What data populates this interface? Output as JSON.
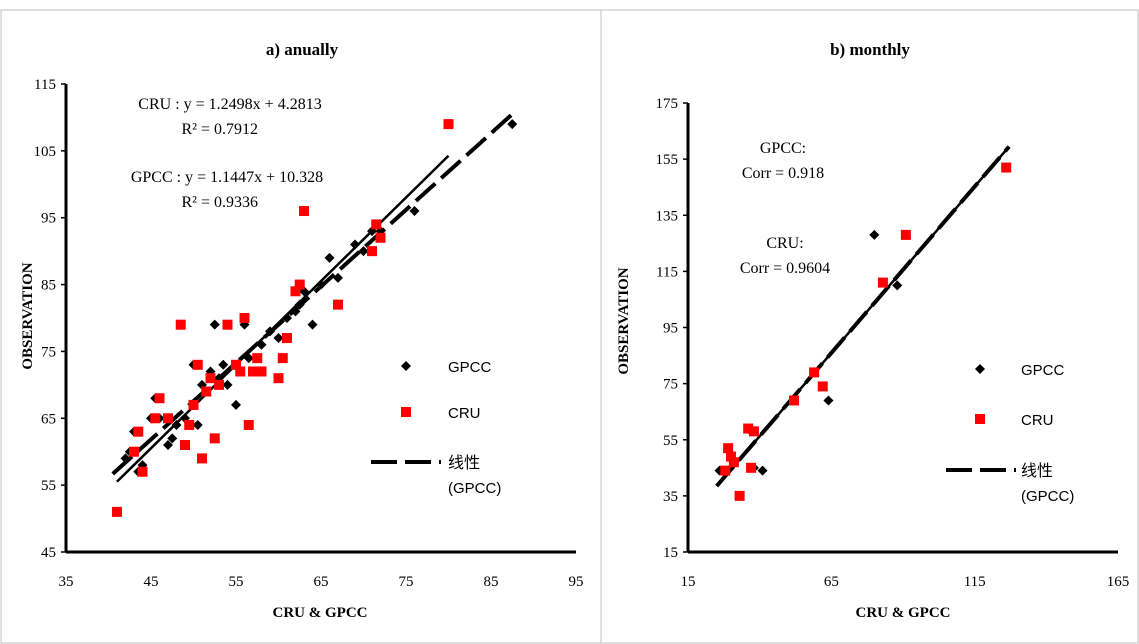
{
  "chart_data": [
    {
      "type": "scatter",
      "title": "a) anually",
      "xlabel": "CRU & GPCC",
      "ylabel": "OBSERVATION",
      "xlim": [
        35,
        95
      ],
      "ylim": [
        45,
        115
      ],
      "xticks": [
        "35",
        "45",
        "55",
        "65",
        "75",
        "85",
        "95"
      ],
      "yticks": [
        "45",
        "55",
        "65",
        "75",
        "85",
        "95",
        "105",
        "115"
      ],
      "annotations": [
        "CRU : y = 1.2498x + 4.2813",
        "R² = 0.7912",
        "GPCC : y = 1.1447x + 10.328",
        "R² = 0.9336"
      ],
      "legend": {
        "position": "right",
        "items": [
          "GPCC",
          "CRU",
          "线性",
          "(GPCC)"
        ]
      },
      "series": [
        {
          "name": "GPCC",
          "marker": "diamond",
          "color": "#000000",
          "x": [
            41,
            42,
            42.5,
            43,
            43.5,
            44,
            45,
            45.5,
            46,
            47,
            47.5,
            48,
            49,
            50,
            50.5,
            51,
            52,
            52.5,
            53,
            53.5,
            54,
            55,
            55.5,
            56,
            56.5,
            57,
            58,
            59,
            60,
            61,
            62,
            62.5,
            63,
            64,
            65,
            66,
            67,
            69,
            70,
            71,
            72,
            76,
            87.5
          ],
          "y": [
            51,
            59,
            60,
            63,
            57,
            58,
            65,
            68,
            65,
            61,
            62,
            64,
            65,
            73,
            64,
            70,
            72,
            79,
            71,
            73,
            70,
            67,
            72,
            79,
            74,
            72,
            76,
            78,
            77,
            80,
            81,
            82,
            84,
            79,
            85,
            89,
            86,
            91,
            90,
            93,
            93,
            96,
            109
          ]
        },
        {
          "name": "CRU",
          "marker": "square",
          "color": "#ff0000",
          "x": [
            41,
            43,
            43.5,
            44,
            45.5,
            46,
            47,
            48.5,
            49,
            49.5,
            50,
            50.5,
            51,
            51.5,
            52,
            52.5,
            53,
            54,
            55,
            55.5,
            56,
            56.5,
            57,
            57.5,
            58,
            60,
            60.5,
            61,
            62,
            62.5,
            63,
            67,
            71,
            71.5,
            72,
            80
          ],
          "y": [
            51,
            60,
            63,
            57,
            65,
            68,
            65,
            79,
            61,
            64,
            67,
            73,
            59,
            69,
            71,
            62,
            70,
            79,
            73,
            72,
            80,
            64,
            72,
            74,
            72,
            71,
            74,
            77,
            84,
            85,
            96,
            82,
            90,
            94,
            92,
            109
          ]
        }
      ],
      "trendlines": [
        {
          "name": "CRU",
          "style": "solid",
          "slope": 1.2498,
          "intercept": 4.2813,
          "x_range": [
            41,
            80
          ]
        },
        {
          "name": "线性 (GPCC)",
          "style": "dashed",
          "slope": 1.1447,
          "intercept": 10.328,
          "x_range": [
            40.5,
            87.5
          ]
        }
      ]
    },
    {
      "type": "scatter",
      "title": "b) monthly",
      "xlabel": "CRU & GPCC",
      "ylabel": "OBSERVATION",
      "xlim": [
        15,
        165
      ],
      "ylim": [
        15,
        175
      ],
      "xticks": [
        "15",
        "65",
        "115",
        "165"
      ],
      "yticks": [
        "15",
        "35",
        "55",
        "75",
        "95",
        "115",
        "135",
        "155",
        "175"
      ],
      "annotations": [
        "GPCC:",
        "Corr = 0.918",
        "CRU:",
        "Corr = 0.9604"
      ],
      "legend": {
        "position": "right",
        "items": [
          "GPCC",
          "CRU",
          "线性",
          "(GPCC)"
        ]
      },
      "series": [
        {
          "name": "GPCC",
          "marker": "diamond",
          "color": "#000000",
          "x": [
            26,
            29,
            30,
            31,
            33,
            37,
            38,
            41,
            59,
            64,
            80,
            88,
            126
          ],
          "y": [
            44,
            52,
            49,
            47,
            35,
            58,
            45,
            44,
            79,
            69,
            128,
            110,
            152
          ]
        },
        {
          "name": "CRU",
          "marker": "square",
          "color": "#ff0000",
          "x": [
            28,
            29,
            30,
            31,
            33,
            36,
            37,
            38,
            52,
            59,
            62,
            83,
            91,
            126
          ],
          "y": [
            44,
            52,
            49,
            47,
            35,
            59,
            45,
            58,
            69,
            79,
            74,
            111,
            128,
            152
          ]
        }
      ],
      "trendlines": [
        {
          "name": "GPCC",
          "style": "solid",
          "slope": 1.186,
          "intercept": 8.83,
          "x_range": [
            26,
            126
          ]
        },
        {
          "name": "线性 (GPCC)",
          "style": "dashed",
          "slope": 1.186,
          "intercept": 8.83,
          "x_range": [
            25,
            127
          ]
        }
      ]
    }
  ]
}
